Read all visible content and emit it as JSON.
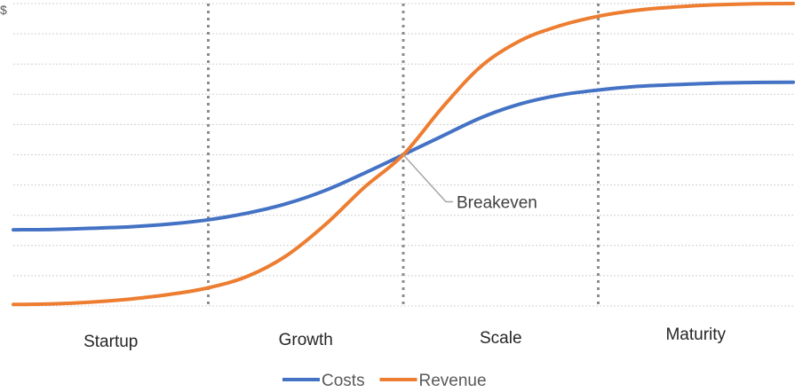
{
  "chart_data": {
    "type": "line",
    "y_unit": "$",
    "xlim": [
      0,
      100
    ],
    "ylim": [
      0,
      10
    ],
    "stages": [
      {
        "name": "Startup",
        "start": 0,
        "end": 25
      },
      {
        "name": "Growth",
        "start": 25,
        "end": 50
      },
      {
        "name": "Scale",
        "start": 50,
        "end": 75
      },
      {
        "name": "Maturity",
        "start": 75,
        "end": 100
      }
    ],
    "phase_boundaries": [
      25,
      50,
      75
    ],
    "series": [
      {
        "name": "Costs",
        "color": "#4472C4",
        "x": [
          0,
          5,
          10,
          15,
          20,
          25,
          30,
          35,
          40,
          45,
          50,
          55,
          60,
          65,
          70,
          75,
          80,
          85,
          90,
          95,
          100
        ],
        "values": [
          2.52,
          2.53,
          2.57,
          2.62,
          2.71,
          2.85,
          3.07,
          3.38,
          3.82,
          4.39,
          5.0,
          5.62,
          6.23,
          6.68,
          6.97,
          7.14,
          7.26,
          7.32,
          7.37,
          7.39,
          7.4
        ]
      },
      {
        "name": "Revenue",
        "color": "#ED7D31",
        "x": [
          0,
          5,
          10,
          15,
          20,
          25,
          30,
          35,
          40,
          45,
          50,
          55,
          60,
          65,
          70,
          75,
          80,
          85,
          90,
          95,
          100
        ],
        "values": [
          0.05,
          0.07,
          0.13,
          0.23,
          0.38,
          0.6,
          0.98,
          1.66,
          2.69,
          3.92,
          5.0,
          6.56,
          7.93,
          8.77,
          9.26,
          9.58,
          9.78,
          9.89,
          9.96,
          9.99,
          10.0
        ]
      }
    ],
    "annotation": {
      "text": "Breakeven",
      "x": 50,
      "y": 5.0
    },
    "grid": true,
    "legend_position": "bottom"
  }
}
